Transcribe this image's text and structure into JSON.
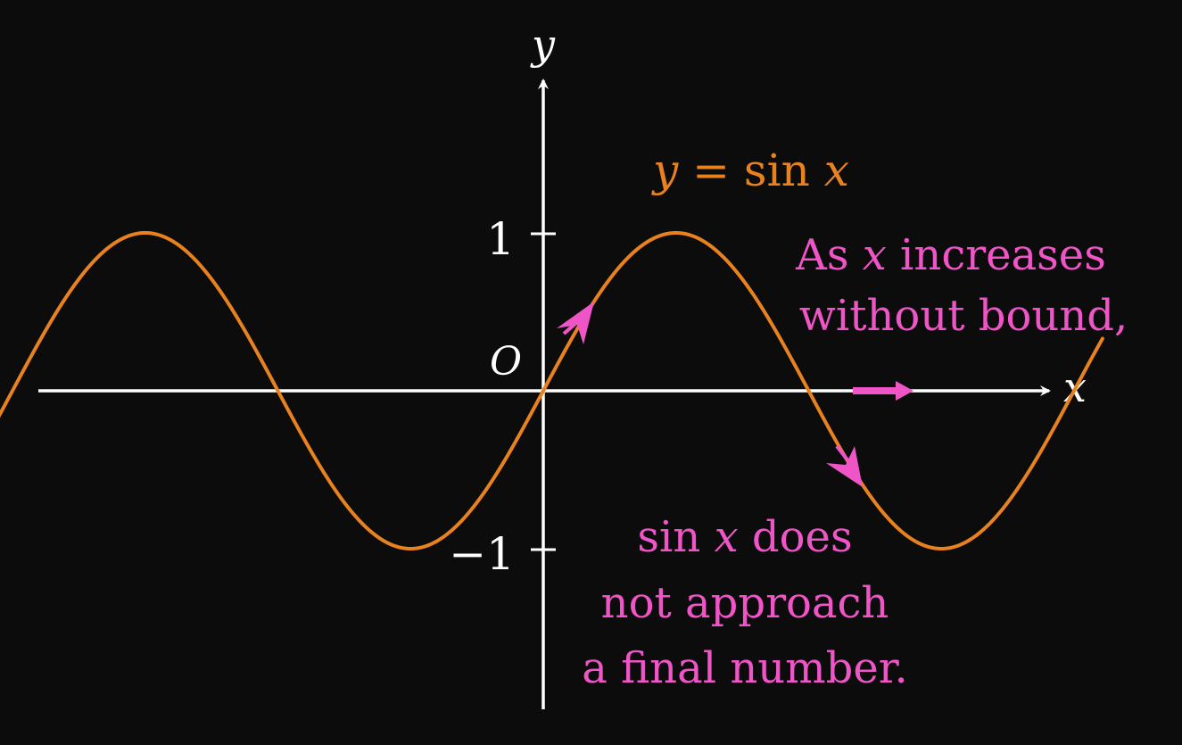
{
  "axes": {
    "x_label": "x",
    "y_label": "y",
    "origin_label": "O",
    "tick_pos_label": "1",
    "tick_neg_label": "−1",
    "color": "#ffffff"
  },
  "curve": {
    "equation_prefix": "y = sin ",
    "equation_var": "x",
    "color": "#e8821f",
    "x_range": [
      -6.98,
      6.62
    ],
    "function": "sin"
  },
  "annotations": {
    "color": "#f055c8",
    "top_line1_prefix": "As ",
    "top_line1_var": "x",
    "top_line1_suffix": " increases",
    "top_line2": "without bound,",
    "bottom_line1_prefix": "sin ",
    "bottom_line1_var": "x",
    "bottom_line1_suffix": " does",
    "bottom_line2": "not approach",
    "bottom_line3": "a final number."
  }
}
